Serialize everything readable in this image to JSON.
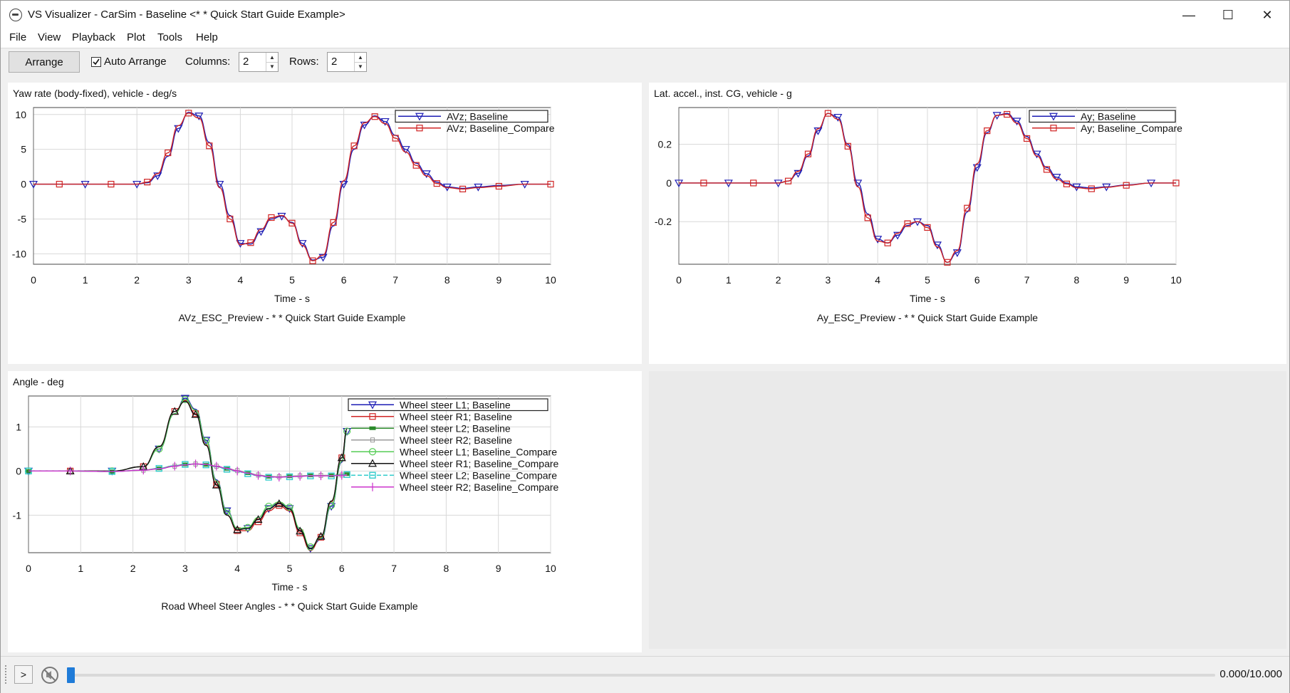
{
  "window": {
    "title": "VS Visualizer - CarSim - Baseline <* * Quick Start Guide Example>",
    "minimize": "—",
    "maximize": "☐",
    "close": "✕"
  },
  "menu": [
    "File",
    "View",
    "Playback",
    "Plot",
    "Tools",
    "Help"
  ],
  "toolbar": {
    "arrange_label": "Arrange",
    "auto_arrange_label": "Auto Arrange",
    "auto_arrange_checked": true,
    "columns_label": "Columns:",
    "columns_value": "2",
    "rows_label": "Rows:",
    "rows_value": "2"
  },
  "status": {
    "play_label": ">",
    "time_readout": "0.000/10.000",
    "progress": 0.0
  },
  "chart_data": [
    {
      "type": "line",
      "title": "AVz_ESC_Preview - * * Quick Start Guide Example",
      "ylabel": "Yaw rate (body-fixed), vehicle - deg/s",
      "xlabel": "Time - s",
      "xlim": [
        0,
        10
      ],
      "ylim": [
        -11.5,
        11
      ],
      "xticks": [
        "0",
        "1",
        "2",
        "3",
        "4",
        "5",
        "6",
        "7",
        "8",
        "9",
        "10"
      ],
      "yticks": [
        {
          "v": 10,
          "t": "10"
        },
        {
          "v": 5,
          "t": "5"
        },
        {
          "v": 0,
          "t": "0"
        },
        {
          "v": -5,
          "t": "-5"
        },
        {
          "v": -10,
          "t": "-10"
        }
      ],
      "grid": true,
      "legend": "top-right",
      "x": [
        0,
        0.5,
        1,
        1.5,
        2,
        2.2,
        2.4,
        2.6,
        2.8,
        3,
        3.2,
        3.4,
        3.6,
        3.8,
        4,
        4.2,
        4.4,
        4.6,
        4.8,
        5,
        5.2,
        5.4,
        5.6,
        5.8,
        6,
        6.2,
        6.4,
        6.6,
        6.8,
        7,
        7.2,
        7.4,
        7.6,
        7.8,
        8,
        8.3,
        8.6,
        9,
        9.5,
        10
      ],
      "series": [
        {
          "name": "AVz; Baseline",
          "color": "#1c1cb4",
          "marker": "triangle-down",
          "values": [
            0,
            0,
            0,
            0,
            0,
            0.2,
            1.2,
            4,
            8,
            10.3,
            9.8,
            6,
            0,
            -4.5,
            -8.5,
            -8.6,
            -6.8,
            -5,
            -4.6,
            -5.5,
            -8.5,
            -10.9,
            -10.5,
            -6,
            0,
            5,
            8.5,
            9.8,
            9,
            7,
            5,
            3,
            1.5,
            0.3,
            -0.4,
            -0.6,
            -0.4,
            -0.2,
            0,
            0
          ]
        },
        {
          "name": "AVz; Baseline_Compare",
          "color": "#d02424",
          "marker": "square",
          "values": [
            0,
            0,
            0,
            0,
            0,
            0.3,
            1.5,
            4.5,
            8.4,
            10.2,
            9.5,
            5.5,
            -0.5,
            -5,
            -8.7,
            -8.4,
            -6.5,
            -4.8,
            -4.5,
            -5.6,
            -8.8,
            -11,
            -10.2,
            -5.5,
            0.5,
            5.5,
            8.8,
            9.7,
            8.7,
            6.6,
            4.6,
            2.7,
            1.2,
            0.1,
            -0.5,
            -0.7,
            -0.5,
            -0.3,
            0,
            0
          ]
        }
      ]
    },
    {
      "type": "line",
      "title": "Ay_ESC_Preview - * * Quick Start Guide Example",
      "ylabel": "Lat. accel., inst. CG, vehicle - g",
      "xlabel": "Time - s",
      "xlim": [
        0,
        10
      ],
      "ylim": [
        -0.42,
        0.39
      ],
      "xticks": [
        "0",
        "1",
        "2",
        "3",
        "4",
        "5",
        "6",
        "7",
        "8",
        "9",
        "10"
      ],
      "yticks": [
        {
          "v": 0.2,
          "t": "0.2"
        },
        {
          "v": 0,
          "t": "0"
        },
        {
          "v": -0.2,
          "t": "-0.2"
        }
      ],
      "grid": true,
      "legend": "top-right",
      "x": [
        0,
        0.5,
        1,
        1.5,
        2,
        2.2,
        2.4,
        2.6,
        2.8,
        3,
        3.2,
        3.4,
        3.6,
        3.8,
        4,
        4.2,
        4.4,
        4.6,
        4.8,
        5,
        5.2,
        5.4,
        5.6,
        5.8,
        6,
        6.2,
        6.4,
        6.6,
        6.8,
        7,
        7.2,
        7.4,
        7.6,
        7.8,
        8,
        8.3,
        8.6,
        9,
        9.5,
        10
      ],
      "series": [
        {
          "name": "Ay; Baseline",
          "color": "#1c1cb4",
          "marker": "triangle-down",
          "values": [
            0,
            0,
            0,
            0,
            0,
            0.01,
            0.05,
            0.14,
            0.27,
            0.36,
            0.34,
            0.2,
            0,
            -0.16,
            -0.29,
            -0.31,
            -0.27,
            -0.22,
            -0.2,
            -0.22,
            -0.32,
            -0.41,
            -0.36,
            -0.15,
            0.08,
            0.26,
            0.35,
            0.36,
            0.32,
            0.24,
            0.15,
            0.08,
            0.03,
            0,
            -0.02,
            -0.025,
            -0.02,
            -0.01,
            0,
            0
          ]
        },
        {
          "name": "Ay; Baseline_Compare",
          "color": "#d02424",
          "marker": "square",
          "values": [
            0,
            0,
            0,
            0,
            0,
            0.01,
            0.06,
            0.15,
            0.28,
            0.36,
            0.33,
            0.19,
            -0.02,
            -0.18,
            -0.3,
            -0.31,
            -0.26,
            -0.21,
            -0.2,
            -0.23,
            -0.33,
            -0.41,
            -0.35,
            -0.13,
            0.1,
            0.27,
            0.35,
            0.355,
            0.31,
            0.23,
            0.14,
            0.07,
            0.02,
            -0.005,
            -0.025,
            -0.03,
            -0.022,
            -0.012,
            0,
            0
          ]
        }
      ]
    },
    {
      "type": "line",
      "title": "Road Wheel Steer Angles - * * Quick Start Guide Example",
      "ylabel": "Angle - deg",
      "xlabel": "Time - s",
      "xlim": [
        0,
        10
      ],
      "ylim": [
        -1.85,
        1.7
      ],
      "xticks": [
        "0",
        "1",
        "2",
        "3",
        "4",
        "5",
        "6",
        "7",
        "8",
        "9",
        "10"
      ],
      "yticks": [
        {
          "v": 1,
          "t": "1"
        },
        {
          "v": 0,
          "t": "0"
        },
        {
          "v": -1,
          "t": "-1"
        }
      ],
      "grid": true,
      "legend": "top-right",
      "x": [
        0,
        0.8,
        1.6,
        2.2,
        2.5,
        2.8,
        3,
        3.2,
        3.4,
        3.6,
        3.8,
        4,
        4.2,
        4.4,
        4.6,
        4.8,
        5,
        5.2,
        5.4,
        5.6,
        5.8,
        6,
        6.1
      ],
      "series": [
        {
          "name": "Wheel steer L1; Baseline",
          "color": "#1c1cb4",
          "marker": "triangle-down",
          "values": [
            0,
            0,
            0,
            0.1,
            0.5,
            1.3,
            1.65,
            1.4,
            0.7,
            -0.2,
            -0.9,
            -1.3,
            -1.3,
            -1.1,
            -0.85,
            -0.72,
            -0.85,
            -1.35,
            -1.75,
            -1.55,
            -0.8,
            0.2,
            0.9
          ]
        },
        {
          "name": "Wheel steer R1; Baseline",
          "color": "#d02424",
          "marker": "square",
          "values": [
            0,
            0,
            0,
            0.1,
            0.55,
            1.35,
            1.6,
            1.3,
            0.6,
            -0.3,
            -1,
            -1.35,
            -1.35,
            -1.15,
            -0.9,
            -0.78,
            -0.9,
            -1.4,
            -1.8,
            -1.5,
            -0.7,
            0.3,
            0.95
          ]
        },
        {
          "name": "Wheel steer L2; Baseline",
          "color": "#2a8a2a",
          "marker": "bar-square",
          "values": [
            0,
            0,
            -0.01,
            0.02,
            0.06,
            0.12,
            0.15,
            0.16,
            0.14,
            0.1,
            0.05,
            0,
            -0.05,
            -0.1,
            -0.13,
            -0.13,
            -0.12,
            -0.11,
            -0.1,
            -0.1,
            -0.1,
            -0.08,
            -0.07
          ]
        },
        {
          "name": "Wheel steer R2; Baseline",
          "color": "#9a9a9a",
          "marker": "small-square",
          "values": [
            0,
            0,
            -0.01,
            0.02,
            0.05,
            0.11,
            0.14,
            0.16,
            0.15,
            0.11,
            0.06,
            0.01,
            -0.04,
            -0.09,
            -0.12,
            -0.13,
            -0.12,
            -0.11,
            -0.1,
            -0.1,
            -0.1,
            -0.09,
            -0.08
          ]
        },
        {
          "name": "Wheel steer L1; Baseline_Compare",
          "color": "#55cc55",
          "marker": "circle",
          "values": [
            0,
            0,
            0,
            0.1,
            0.5,
            1.3,
            1.62,
            1.38,
            0.68,
            -0.22,
            -0.92,
            -1.3,
            -1.28,
            -1.05,
            -0.8,
            -0.7,
            -0.82,
            -1.3,
            -1.72,
            -1.52,
            -0.78,
            0.22,
            0.9
          ]
        },
        {
          "name": "Wheel steer R1; Baseline_Compare",
          "color": "#111111",
          "marker": "triangle-up",
          "values": [
            0,
            0,
            0,
            0.1,
            0.55,
            1.35,
            1.58,
            1.28,
            0.58,
            -0.32,
            -1,
            -1.33,
            -1.3,
            -1.1,
            -0.85,
            -0.74,
            -0.86,
            -1.36,
            -1.76,
            -1.48,
            -0.68,
            0.3,
            0.95
          ]
        },
        {
          "name": "Wheel steer L2; Baseline_Compare",
          "color": "#33cccc",
          "marker": "cyan-square",
          "dashed": true,
          "values": [
            0,
            0,
            -0.01,
            0.02,
            0.06,
            0.12,
            0.15,
            0.16,
            0.14,
            0.1,
            0.04,
            -0.01,
            -0.06,
            -0.11,
            -0.14,
            -0.14,
            -0.13,
            -0.12,
            -0.11,
            -0.11,
            -0.11,
            -0.09,
            -0.08
          ]
        },
        {
          "name": "Wheel steer R2; Baseline_Compare",
          "color": "#cc33cc",
          "marker": "plus",
          "values": [
            0,
            0,
            -0.01,
            0.02,
            0.05,
            0.11,
            0.14,
            0.16,
            0.15,
            0.11,
            0.06,
            0,
            -0.05,
            -0.1,
            -0.13,
            -0.14,
            -0.13,
            -0.12,
            -0.11,
            -0.11,
            -0.11,
            -0.1,
            -0.09
          ]
        }
      ]
    }
  ]
}
